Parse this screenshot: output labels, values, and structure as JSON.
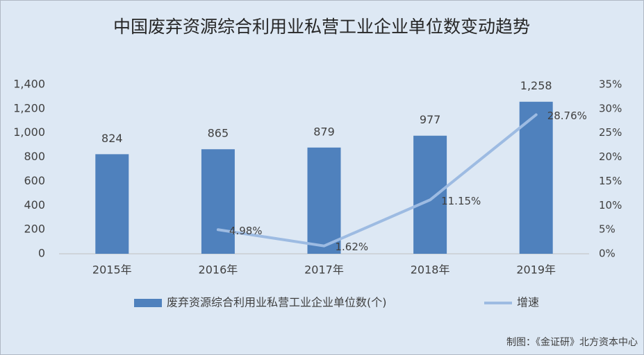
{
  "chart_data": {
    "type": "bar",
    "title": "中国废弃资源综合利用业私营工业企业单位数变动趋势",
    "categories": [
      "2015年",
      "2016年",
      "2017年",
      "2018年",
      "2019年"
    ],
    "series": [
      {
        "name": "废弃资源综合利用业私营工业企业单位数(个)",
        "type": "bar",
        "color": "#4f81bd",
        "values": [
          824,
          865,
          879,
          977,
          1258
        ],
        "value_labels": [
          "824",
          "865",
          "879",
          "977",
          "1,258"
        ]
      },
      {
        "name": "增速",
        "type": "line",
        "axis": "y2",
        "color": "#9dbbe2",
        "values": [
          null,
          4.98,
          1.62,
          11.15,
          28.76
        ],
        "value_labels": [
          null,
          "4.98%",
          "1.62%",
          "11.15%",
          "28.76%"
        ]
      }
    ],
    "ylim": [
      0,
      1400
    ],
    "yticks": [
      0,
      200,
      400,
      600,
      800,
      {
        "value": 1000,
        "label": "1,000"
      },
      {
        "value": 1200,
        "label": "1,200"
      },
      {
        "value": 1400,
        "label": "1,400"
      }
    ],
    "y2lim": [
      0,
      35
    ],
    "y2ticks": [
      {
        "value": 0,
        "label": "0%"
      },
      {
        "value": 5,
        "label": "5%"
      },
      {
        "value": 10,
        "label": "10%"
      },
      {
        "value": 15,
        "label": "15%"
      },
      {
        "value": 20,
        "label": "20%"
      },
      {
        "value": 25,
        "label": "25%"
      },
      {
        "value": 30,
        "label": "30%"
      },
      {
        "value": 35,
        "label": "35%"
      }
    ],
    "legend": "bottom",
    "source": "制图：《金证研》北方资本中心"
  }
}
